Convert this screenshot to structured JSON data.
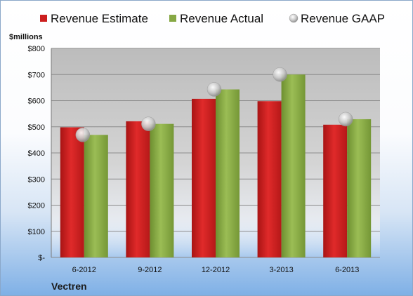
{
  "chart_data": {
    "type": "bar",
    "company": "Vectren",
    "unit_label": "$millions",
    "categories": [
      "6-2012",
      "9-2012",
      "12-2012",
      "3-2013",
      "6-2013"
    ],
    "series": [
      {
        "name": "Revenue Estimate",
        "type": "bar",
        "color": "#cc1f1f",
        "values": [
          498,
          521,
          607,
          598,
          508
        ]
      },
      {
        "name": "Revenue Actual",
        "type": "bar",
        "color": "#86a844",
        "values": [
          469,
          511,
          643,
          700,
          529
        ]
      },
      {
        "name": "Revenue GAAP",
        "type": "marker",
        "color": "#c8c8c8",
        "values": [
          469,
          511,
          643,
          700,
          529
        ]
      }
    ],
    "ylim": [
      0,
      800
    ],
    "yticks": [
      0,
      100,
      200,
      300,
      400,
      500,
      600,
      700,
      800
    ],
    "ytick_labels": [
      "$-",
      "$100",
      "$200",
      "$300",
      "$400",
      "$500",
      "$600",
      "$700",
      "$800"
    ],
    "grid": true,
    "legend_position": "top"
  }
}
